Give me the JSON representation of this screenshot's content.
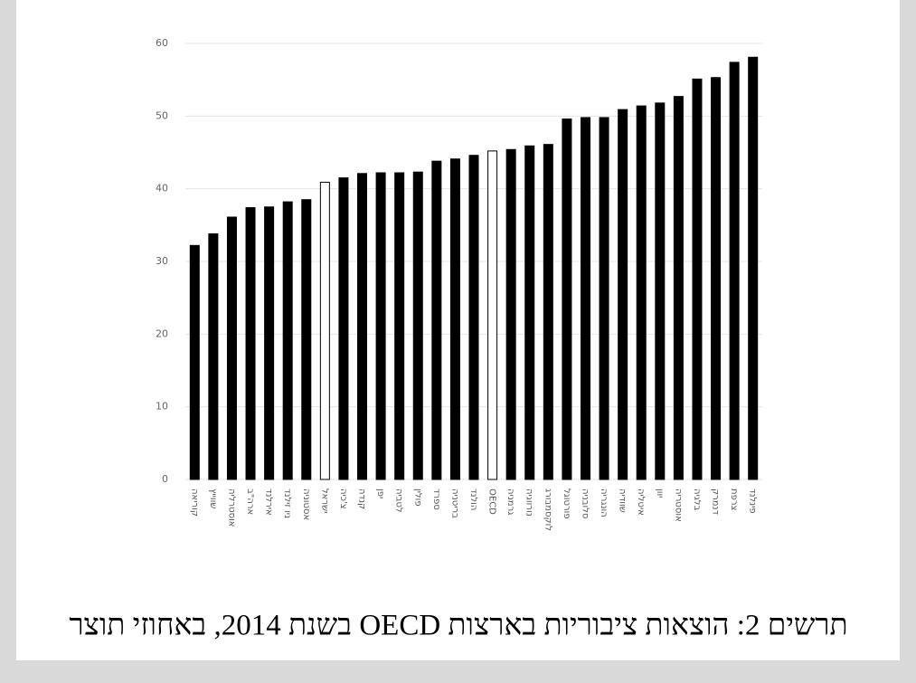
{
  "chart_data": {
    "type": "bar",
    "title": "תרשים 2: הוצאות ציבוריות בארצות OECD בשנת 2014, באחוזי תוצר",
    "categories": [
      "קוריאה",
      "שווייץ",
      "אוסטרליה",
      "ארה\"ב",
      "אירלנד",
      "ניו זילנד",
      "אסטוניה",
      "ישראל",
      "צ'כיה",
      "קנדה",
      "יפן",
      "לטביה",
      "פולין",
      "ספרד",
      "בריטניה",
      "הולנד",
      "OECD",
      "גרמניה",
      "נורווגיה",
      "לוקסמבורג",
      "פורטוגל",
      "סלובניה",
      "הונגריה",
      "שוודיה",
      "איטליה",
      "יוון",
      "אוסטריה",
      "בלגיה",
      "דנמרק",
      "צרפת",
      "פינלנד"
    ],
    "values": [
      32.2,
      33.8,
      36.1,
      37.4,
      37.5,
      38.2,
      38.5,
      40.9,
      41.5,
      42.1,
      42.2,
      42.2,
      42.3,
      43.8,
      44.1,
      44.6,
      45.2,
      45.4,
      45.9,
      46.1,
      49.6,
      49.8,
      49.8,
      50.9,
      51.4,
      51.8,
      52.7,
      55.1,
      55.3,
      57.4,
      58.1
    ],
    "colors": [
      "#000000",
      "#000000",
      "#000000",
      "#000000",
      "#000000",
      "#000000",
      "#000000",
      "#ffffff",
      "#000000",
      "#000000",
      "#000000",
      "#000000",
      "#000000",
      "#000000",
      "#000000",
      "#000000",
      "#ffffff",
      "#000000",
      "#000000",
      "#000000",
      "#000000",
      "#000000",
      "#000000",
      "#000000",
      "#000000",
      "#000000",
      "#000000",
      "#000000",
      "#000000",
      "#000000",
      "#000000"
    ],
    "ylim": [
      0,
      60
    ],
    "yticks": [
      0,
      10,
      20,
      30,
      40,
      50,
      60
    ],
    "grid": true
  }
}
